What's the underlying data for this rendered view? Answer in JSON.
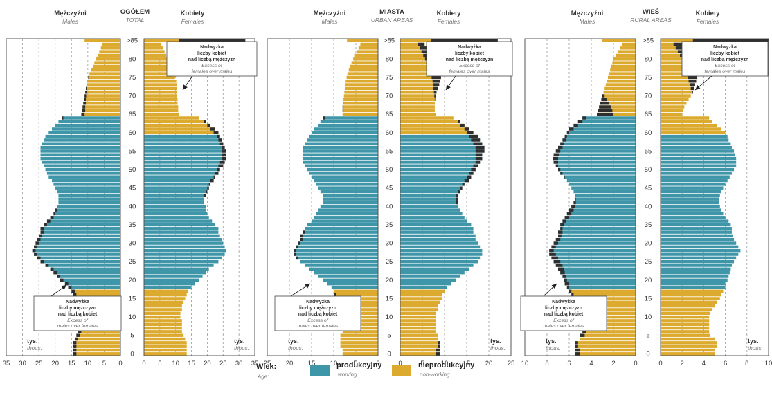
{
  "chart_data": [
    {
      "type": "bar",
      "subtype": "population-pyramid",
      "title": "OGÓŁEM",
      "subtitle": "TOTAL",
      "male_label": "Mężczyźni",
      "male_sublabel": "Males",
      "female_label": "Kobiety",
      "female_sublabel": "Females",
      "unit_label": "tys.",
      "unit_sublabel": "thous.",
      "xlim": [
        0,
        35
      ],
      "xticks": [
        0,
        5,
        10,
        15,
        20,
        25,
        30,
        35
      ],
      "age_ticks": [
        "0",
        "5",
        "10",
        "15",
        "20",
        "25",
        "30",
        "35",
        "40",
        "45",
        "50",
        "55",
        "60",
        "65",
        "70",
        "75",
        "80",
        ">85"
      ],
      "ages": [
        "0",
        "1",
        "2",
        "3",
        "4",
        "5",
        "6",
        "7",
        "8",
        "9",
        "10",
        "11",
        "12",
        "13",
        "14",
        "15",
        "16",
        "17",
        "18",
        "19",
        "20",
        "21",
        "22",
        "23",
        "24",
        "25",
        "26",
        "27",
        "28",
        "29",
        "30",
        "31",
        "32",
        "33",
        "34",
        "35",
        "36",
        "37",
        "38",
        "39",
        "40",
        "41",
        "42",
        "43",
        "44",
        "45",
        "46",
        "47",
        "48",
        "49",
        "50",
        "51",
        "52",
        "53",
        "54",
        "55",
        "56",
        "57",
        "58",
        "59",
        "60",
        "61",
        "62",
        "63",
        "64",
        "65",
        "66",
        "67",
        "68",
        "69",
        "70",
        "71",
        "72",
        "73",
        "74",
        "75",
        "76",
        "77",
        "78",
        "79",
        "80",
        "81",
        "82",
        "83",
        "84",
        ">85"
      ],
      "males": [
        14.5,
        14.5,
        14.5,
        14.5,
        14.0,
        13.5,
        13.0,
        13.0,
        13.0,
        13.0,
        12.5,
        12.5,
        13.0,
        13.0,
        13.5,
        14.0,
        14.5,
        15.0,
        16.0,
        17.0,
        18.5,
        19.5,
        20.5,
        21.5,
        23.0,
        24.5,
        25.5,
        26.5,
        27.0,
        26.5,
        26.0,
        25.5,
        25.0,
        24.5,
        24.5,
        23.5,
        22.5,
        21.5,
        20.5,
        20.0,
        19.5,
        19.0,
        19.0,
        19.0,
        19.5,
        20.0,
        20.5,
        21.0,
        22.0,
        22.5,
        23.0,
        23.5,
        24.0,
        24.5,
        24.5,
        24.5,
        24.5,
        24.0,
        23.5,
        23.0,
        22.0,
        21.0,
        20.0,
        19.0,
        18.0,
        12.0,
        11.8,
        11.6,
        11.4,
        11.2,
        11.0,
        10.8,
        10.6,
        10.4,
        10.2,
        9.9,
        9.5,
        9.0,
        8.5,
        8.0,
        7.5,
        7.0,
        6.5,
        6.0,
        5.5,
        11.0
      ],
      "females": [
        13.5,
        13.5,
        13.5,
        13.5,
        13.0,
        12.5,
        12.0,
        12.0,
        12.0,
        12.0,
        11.5,
        11.5,
        12.0,
        12.0,
        12.5,
        13.0,
        13.5,
        14.0,
        15.0,
        16.0,
        17.5,
        18.5,
        19.5,
        20.5,
        22.0,
        23.5,
        24.5,
        25.5,
        26.0,
        25.5,
        25.0,
        24.5,
        24.0,
        23.5,
        23.5,
        22.5,
        21.5,
        20.5,
        20.0,
        19.5,
        19.5,
        19.0,
        19.0,
        19.5,
        20.0,
        20.5,
        21.0,
        22.0,
        22.5,
        23.5,
        24.0,
        25.0,
        25.5,
        26.0,
        26.0,
        26.0,
        25.5,
        25.0,
        24.5,
        24.0,
        23.5,
        22.5,
        21.0,
        19.5,
        17.5,
        11.0,
        10.8,
        10.8,
        10.6,
        10.6,
        10.5,
        10.4,
        10.4,
        10.3,
        10.2,
        9.8,
        9.5,
        9.0,
        8.5,
        8.0,
        7.5,
        7.0,
        6.5,
        6.0,
        5.5,
        32.0
      ],
      "annotation_female": {
        "title": "Nadwyżka liczby kobiet nad liczbą mężczyzn",
        "subtitle": "Excess of females over males"
      },
      "annotation_male": {
        "title": "Nadwyżka liczby mężczyzn nad liczbą kobiet",
        "subtitle": "Excess of males over females"
      }
    },
    {
      "type": "bar",
      "subtype": "population-pyramid",
      "title": "MIASTA",
      "subtitle": "URBAN AREAS",
      "male_label": "Mężczyźni",
      "male_sublabel": "Males",
      "female_label": "Kobiety",
      "female_sublabel": "Females",
      "unit_label": "tys.",
      "unit_sublabel": "thous.",
      "xlim": [
        0,
        25
      ],
      "xticks": [
        0,
        5,
        10,
        15,
        20,
        25
      ],
      "age_ticks": [
        "0",
        "5",
        "10",
        "15",
        "20",
        "25",
        "30",
        "35",
        "40",
        "45",
        "50",
        "55",
        "60",
        "65",
        "70",
        "75",
        "80",
        ">85"
      ],
      "ages": [
        "0",
        "1",
        "2",
        "3",
        "4",
        "5",
        "6",
        "7",
        "8",
        "9",
        "10",
        "11",
        "12",
        "13",
        "14",
        "15",
        "16",
        "17",
        "18",
        "19",
        "20",
        "21",
        "22",
        "23",
        "24",
        "25",
        "26",
        "27",
        "28",
        "29",
        "30",
        "31",
        "32",
        "33",
        "34",
        "35",
        "36",
        "37",
        "38",
        "39",
        "40",
        "41",
        "42",
        "43",
        "44",
        "45",
        "46",
        "47",
        "48",
        "49",
        "50",
        "51",
        "52",
        "53",
        "54",
        "55",
        "56",
        "57",
        "58",
        "59",
        "60",
        "61",
        "62",
        "63",
        "64",
        "65",
        "66",
        "67",
        "68",
        "69",
        "70",
        "71",
        "72",
        "73",
        "74",
        "75",
        "76",
        "77",
        "78",
        "79",
        "80",
        "81",
        "82",
        "83",
        "84",
        ">85"
      ],
      "males": [
        8.0,
        8.0,
        8.5,
        8.5,
        8.5,
        8.5,
        8.0,
        8.0,
        8.0,
        8.0,
        8.0,
        8.5,
        8.5,
        9.0,
        9.0,
        9.5,
        10.0,
        10.0,
        10.5,
        11.5,
        12.5,
        13.5,
        14.5,
        15.5,
        16.5,
        17.5,
        18.5,
        19.0,
        19.0,
        18.5,
        18.0,
        17.5,
        17.5,
        17.0,
        16.5,
        16.0,
        15.0,
        14.5,
        14.0,
        13.5,
        13.0,
        12.5,
        12.5,
        12.5,
        13.0,
        13.5,
        14.0,
        14.5,
        15.0,
        15.5,
        16.0,
        16.5,
        17.0,
        17.0,
        17.0,
        17.0,
        17.0,
        16.5,
        16.0,
        15.5,
        15.0,
        14.5,
        13.5,
        13.0,
        12.5,
        8.0,
        8.0,
        8.0,
        7.9,
        7.8,
        7.7,
        7.6,
        7.5,
        7.4,
        7.3,
        7.1,
        6.9,
        6.6,
        6.3,
        6.0,
        5.6,
        5.2,
        4.8,
        4.4,
        4.0,
        7.0
      ],
      "females": [
        9.0,
        9.0,
        9.0,
        9.0,
        8.5,
        8.5,
        8.0,
        8.0,
        8.0,
        8.0,
        8.0,
        8.0,
        8.5,
        8.5,
        9.0,
        9.5,
        9.5,
        10.0,
        10.5,
        11.5,
        12.5,
        13.5,
        14.5,
        15.5,
        16.5,
        17.5,
        18.0,
        18.5,
        18.5,
        18.0,
        17.5,
        17.0,
        17.0,
        16.5,
        16.5,
        16.0,
        15.0,
        14.5,
        14.0,
        13.5,
        13.0,
        13.0,
        13.0,
        13.0,
        13.5,
        14.0,
        14.5,
        15.5,
        16.0,
        16.5,
        17.0,
        17.5,
        18.0,
        18.5,
        18.5,
        19.0,
        19.0,
        18.5,
        18.0,
        17.5,
        16.5,
        15.5,
        14.5,
        13.5,
        12.0,
        8.0,
        7.8,
        7.8,
        7.8,
        7.9,
        8.0,
        8.2,
        8.5,
        8.8,
        9.0,
        9.2,
        9.3,
        9.2,
        9.0,
        8.7,
        8.2,
        7.6,
        7.0,
        6.3,
        5.5,
        22.0
      ],
      "annotation_female": {
        "title": "Nadwyżka liczby kobiet nad liczbą mężczyzn",
        "subtitle": "Excess of females over males"
      },
      "annotation_male": {
        "title": "Nadwyżka liczby mężczyzn nad liczbą kobiet",
        "subtitle": "Excess of males over females"
      }
    },
    {
      "type": "bar",
      "subtype": "population-pyramid",
      "title": "WIEŚ",
      "subtitle": "RURAL AREAS",
      "male_label": "Mężczyźni",
      "male_sublabel": "Males",
      "female_label": "Kobiety",
      "female_sublabel": "Females",
      "unit_label": "tys.",
      "unit_sublabel": "thous.",
      "xlim": [
        0,
        10
      ],
      "xticks": [
        0,
        2,
        4,
        6,
        8,
        10
      ],
      "age_ticks": [
        "0",
        "5",
        "10",
        "15",
        "20",
        "25",
        "30",
        "35",
        "40",
        "45",
        "50",
        "55",
        "60",
        "65",
        "70",
        "75",
        "80",
        ">85"
      ],
      "ages": [
        "0",
        "1",
        "2",
        "3",
        "4",
        "5",
        "6",
        "7",
        "8",
        "9",
        "10",
        "11",
        "12",
        "13",
        "14",
        "15",
        "16",
        "17",
        "18",
        "19",
        "20",
        "21",
        "22",
        "23",
        "24",
        "25",
        "26",
        "27",
        "28",
        "29",
        "30",
        "31",
        "32",
        "33",
        "34",
        "35",
        "36",
        "37",
        "38",
        "39",
        "40",
        "41",
        "42",
        "43",
        "44",
        "45",
        "46",
        "47",
        "48",
        "49",
        "50",
        "51",
        "52",
        "53",
        "54",
        "55",
        "56",
        "57",
        "58",
        "59",
        "60",
        "61",
        "62",
        "63",
        "64",
        "65",
        "66",
        "67",
        "68",
        "69",
        "70",
        "71",
        "72",
        "73",
        "74",
        "75",
        "76",
        "77",
        "78",
        "79",
        "80",
        "81",
        "82",
        "83",
        "84",
        ">85"
      ],
      "males": [
        5.5,
        5.5,
        5.5,
        5.5,
        5.0,
        5.0,
        4.8,
        4.8,
        4.8,
        4.8,
        4.8,
        5.0,
        5.0,
        5.2,
        5.3,
        5.5,
        5.8,
        6.0,
        6.2,
        6.4,
        6.5,
        6.6,
        6.8,
        7.0,
        7.2,
        7.4,
        7.6,
        7.8,
        7.8,
        7.6,
        7.4,
        7.2,
        7.0,
        7.0,
        6.8,
        6.8,
        6.6,
        6.4,
        6.2,
        6.0,
        5.8,
        5.6,
        5.5,
        5.5,
        5.6,
        5.8,
        6.0,
        6.2,
        6.5,
        6.8,
        7.0,
        7.2,
        7.4,
        7.5,
        7.4,
        7.2,
        7.0,
        6.8,
        6.6,
        6.4,
        6.2,
        6.0,
        5.6,
        5.2,
        4.8,
        3.5,
        3.4,
        3.3,
        3.2,
        3.1,
        3.0,
        2.9,
        2.8,
        2.7,
        2.6,
        2.5,
        2.4,
        2.3,
        2.2,
        2.1,
        2.0,
        1.8,
        1.6,
        1.4,
        1.2,
        3.0
      ],
      "females": [
        5.0,
        5.0,
        5.2,
        5.2,
        5.0,
        4.6,
        4.5,
        4.5,
        4.5,
        4.5,
        4.5,
        4.6,
        4.8,
        5.0,
        5.2,
        5.5,
        5.6,
        5.8,
        6.0,
        6.0,
        6.2,
        6.3,
        6.4,
        6.5,
        6.6,
        6.8,
        7.0,
        7.2,
        7.4,
        7.2,
        7.0,
        6.8,
        6.7,
        6.6,
        6.6,
        6.5,
        6.3,
        6.0,
        5.8,
        5.6,
        5.5,
        5.4,
        5.4,
        5.5,
        5.6,
        5.8,
        6.0,
        6.2,
        6.4,
        6.6,
        6.8,
        7.0,
        7.0,
        7.0,
        6.9,
        6.8,
        6.6,
        6.5,
        6.3,
        6.2,
        6.0,
        5.6,
        5.2,
        4.8,
        4.5,
        2.0,
        2.1,
        2.2,
        2.4,
        2.6,
        2.8,
        3.0,
        3.1,
        3.2,
        3.3,
        3.4,
        3.5,
        3.5,
        3.4,
        3.3,
        3.2,
        3.0,
        2.8,
        2.6,
        2.4,
        10.0
      ],
      "annotation_female": {
        "title": "Nadwyżka liczby kobiet nad liczbą mężczyzn",
        "subtitle": "Excess of females over males"
      },
      "annotation_male": {
        "title": "Nadwyżka liczby mężczyzn nad liczbą kobiet",
        "subtitle": "Excess of males over females"
      }
    }
  ],
  "colors": {
    "working": "#3f96a9",
    "non_working": "#dcaa2e",
    "excess": "#2f2f2f",
    "grid": "#9a9a9a",
    "frame": "#555555"
  },
  "legend": {
    "age_label": "Wiek:",
    "age_sublabel": "Age:",
    "items": [
      {
        "key": "working",
        "label": "produkcyjny",
        "sublabel": "working"
      },
      {
        "key": "non_working",
        "label": "nieprodukcyjny",
        "sublabel": "non-working"
      }
    ]
  },
  "working_age_range": {
    "males": [
      18,
      64
    ],
    "females": [
      18,
      59
    ]
  }
}
